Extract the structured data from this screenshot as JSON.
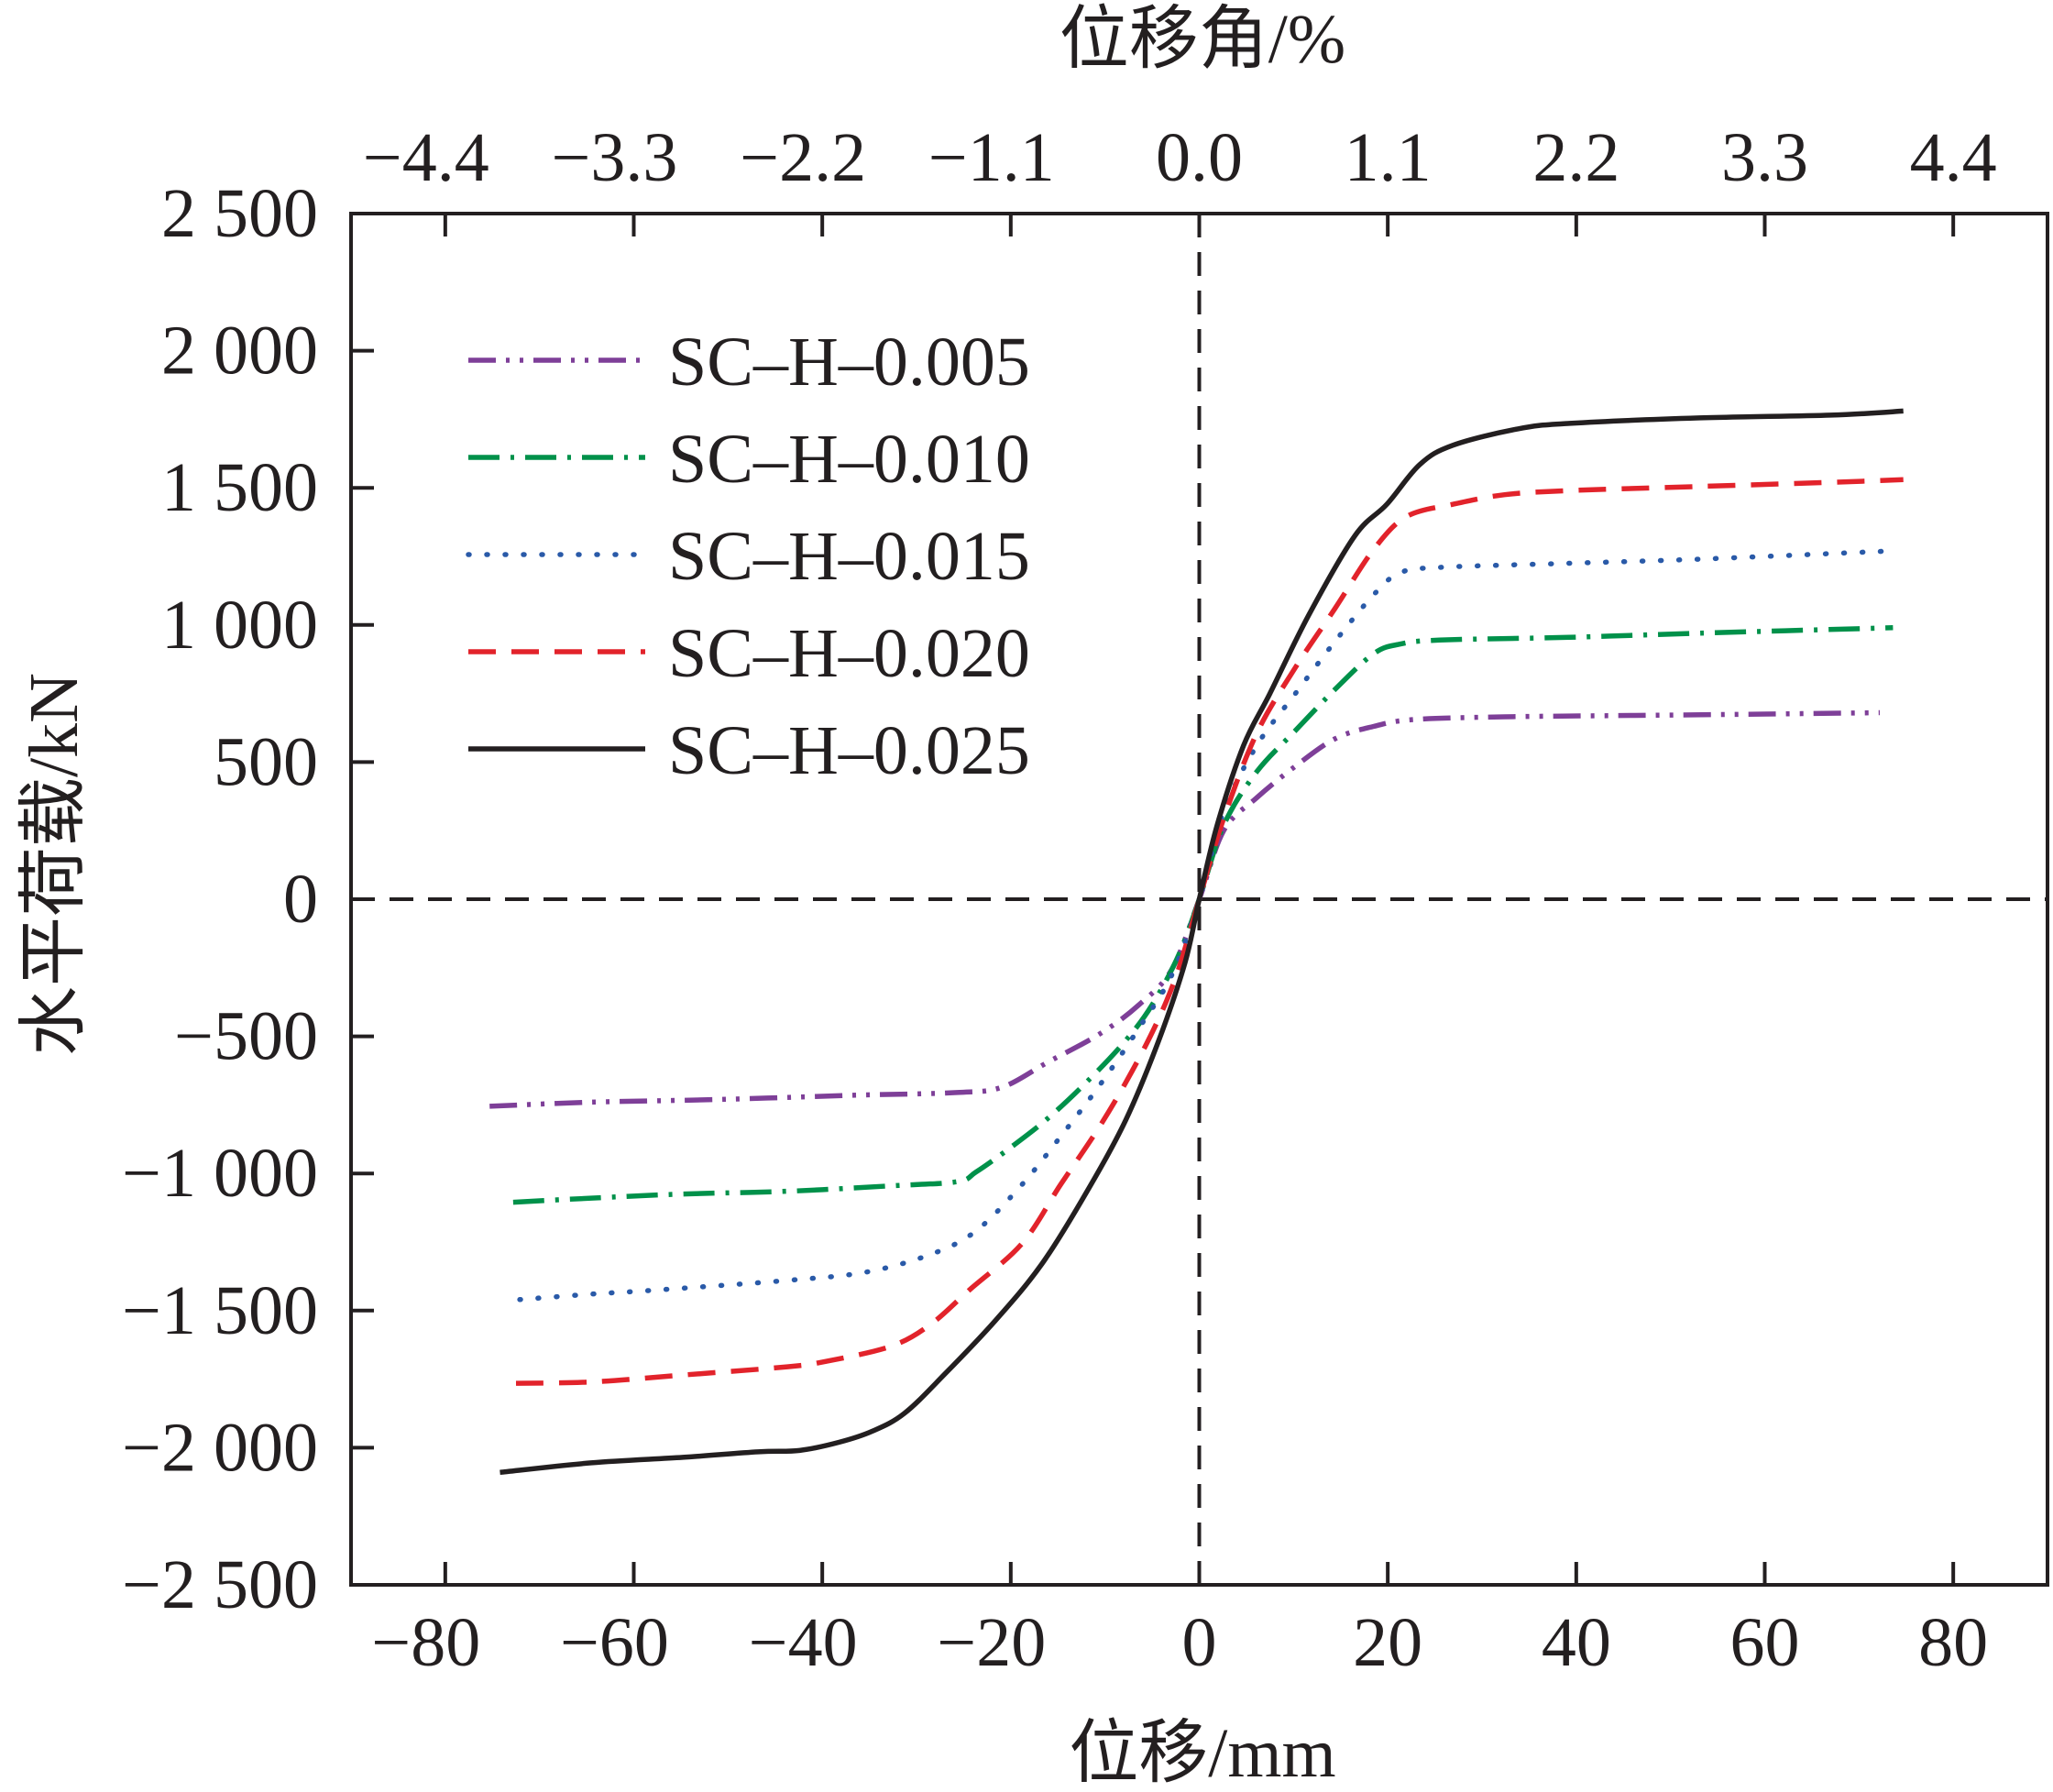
{
  "chart_data": {
    "type": "line",
    "title": "",
    "xlabel": "位移/mm",
    "ylabel": "水平荷载/kN",
    "x2label": "位移角/%",
    "xlim": [
      -90,
      90
    ],
    "x2lim": [
      -4.95,
      4.95
    ],
    "ylim": [
      -2500,
      2500
    ],
    "xticks": [
      -80,
      -60,
      -40,
      -20,
      0,
      20,
      40,
      60,
      80
    ],
    "xtick_labels": [
      "−80",
      "−60",
      "−40",
      "−20",
      "0",
      "20",
      "40",
      "60",
      "80"
    ],
    "x2ticks": [
      -4.4,
      -3.3,
      -2.2,
      -1.1,
      0.0,
      1.1,
      2.2,
      3.3,
      4.4
    ],
    "x2tick_labels": [
      "−4.4",
      "−3.3",
      "−2.2",
      "−1.1",
      "0.0",
      "1.1",
      "2.2",
      "3.3",
      "4.4"
    ],
    "yticks": [
      2500,
      2000,
      1500,
      1000,
      500,
      0,
      -500,
      -1000,
      -1500,
      -2000,
      -2500
    ],
    "ytick_labels": [
      "2 500",
      "2 000",
      "1 500",
      "1 000",
      "500",
      "0",
      "−500",
      "−1 000",
      "−1 500",
      "−2 000",
      "−2 500"
    ],
    "grid": false,
    "reference_lines": [
      "x = 0 dashed",
      "y = 0 dashed"
    ],
    "legend": "top-left",
    "series": [
      {
        "name": "SC–H–0.005",
        "color": "#7e3f98",
        "style": "dash-dot-dot",
        "points": [
          [
            -75.3,
            -755
          ],
          [
            -64.5,
            -740
          ],
          [
            -50.7,
            -730
          ],
          [
            -36.8,
            -715
          ],
          [
            -25.7,
            -705
          ],
          [
            -20.9,
            -685
          ],
          [
            -16.1,
            -595
          ],
          [
            -10.5,
            -490
          ],
          [
            -6.4,
            -385
          ],
          [
            -2.9,
            -255
          ],
          [
            0,
            0
          ],
          [
            2.6,
            250
          ],
          [
            6.1,
            370
          ],
          [
            10.2,
            485
          ],
          [
            14.4,
            585
          ],
          [
            18.5,
            630
          ],
          [
            22.7,
            655
          ],
          [
            32.4,
            665
          ],
          [
            46.2,
            670
          ],
          [
            60.1,
            675
          ],
          [
            72.2,
            680
          ]
        ]
      },
      {
        "name": "SC–H–0.010",
        "color": "#00914a",
        "style": "dash-dot",
        "points": [
          [
            -72.8,
            -1105
          ],
          [
            -64.5,
            -1090
          ],
          [
            -54.8,
            -1075
          ],
          [
            -43.7,
            -1065
          ],
          [
            -32.7,
            -1045
          ],
          [
            -25.7,
            -1030
          ],
          [
            -23.7,
            -995
          ],
          [
            -20.2,
            -910
          ],
          [
            -16.1,
            -800
          ],
          [
            -11.9,
            -665
          ],
          [
            -7.8,
            -515
          ],
          [
            -5.0,
            -385
          ],
          [
            -2.2,
            -205
          ],
          [
            0,
            0
          ],
          [
            2.6,
            270
          ],
          [
            6.1,
            465
          ],
          [
            10.2,
            615
          ],
          [
            14.4,
            765
          ],
          [
            18.5,
            895
          ],
          [
            21.3,
            930
          ],
          [
            25.5,
            945
          ],
          [
            39.3,
            955
          ],
          [
            53.1,
            970
          ],
          [
            73.6,
            990
          ]
        ]
      },
      {
        "name": "SC–H–0.015",
        "color": "#2a5aa8",
        "style": "dotted",
        "points": [
          [
            -72.1,
            -1460
          ],
          [
            -64.5,
            -1440
          ],
          [
            -57.6,
            -1425
          ],
          [
            -43.7,
            -1390
          ],
          [
            -35.4,
            -1360
          ],
          [
            -28.5,
            -1295
          ],
          [
            -23.7,
            -1210
          ],
          [
            -18.8,
            -1040
          ],
          [
            -14.7,
            -865
          ],
          [
            -10.5,
            -675
          ],
          [
            -6.4,
            -470
          ],
          [
            -2.9,
            -275
          ],
          [
            0,
            0
          ],
          [
            2.6,
            320
          ],
          [
            6.1,
            560
          ],
          [
            10.2,
            750
          ],
          [
            14.4,
            940
          ],
          [
            18.5,
            1110
          ],
          [
            21.3,
            1190
          ],
          [
            25.5,
            1210
          ],
          [
            39.3,
            1225
          ],
          [
            53.1,
            1240
          ],
          [
            73.6,
            1270
          ]
        ]
      },
      {
        "name": "SC–H–0.020",
        "color": "#e2232b",
        "style": "dashed",
        "points": [
          [
            -72.5,
            -1765
          ],
          [
            -64.5,
            -1760
          ],
          [
            -54.8,
            -1735
          ],
          [
            -43.7,
            -1705
          ],
          [
            -39.6,
            -1685
          ],
          [
            -32.7,
            -1630
          ],
          [
            -28.5,
            -1550
          ],
          [
            -24.4,
            -1425
          ],
          [
            -18.8,
            -1255
          ],
          [
            -14.7,
            -1040
          ],
          [
            -10.5,
            -825
          ],
          [
            -7.1,
            -625
          ],
          [
            -4.3,
            -435
          ],
          [
            -2.2,
            -255
          ],
          [
            0,
            0
          ],
          [
            2.6,
            295
          ],
          [
            6.1,
            605
          ],
          [
            10.2,
            845
          ],
          [
            14.4,
            1060
          ],
          [
            18.5,
            1275
          ],
          [
            22.0,
            1395
          ],
          [
            26.9,
            1440
          ],
          [
            32.4,
            1475
          ],
          [
            39.3,
            1490
          ],
          [
            53.1,
            1505
          ],
          [
            67.0,
            1520
          ],
          [
            74.7,
            1530
          ]
        ]
      },
      {
        "name": "SC–H–0.025",
        "color": "#231f20",
        "style": "solid",
        "points": [
          [
            -74.2,
            -2090
          ],
          [
            -64.5,
            -2055
          ],
          [
            -54.8,
            -2035
          ],
          [
            -46.8,
            -2015
          ],
          [
            -42.4,
            -2010
          ],
          [
            -38.2,
            -1980
          ],
          [
            -34.7,
            -1940
          ],
          [
            -31.3,
            -1875
          ],
          [
            -27.1,
            -1735
          ],
          [
            -21.6,
            -1535
          ],
          [
            -16.7,
            -1330
          ],
          [
            -11.9,
            -1065
          ],
          [
            -7.8,
            -805
          ],
          [
            -4.3,
            -515
          ],
          [
            -1.5,
            -230
          ],
          [
            0,
            0
          ],
          [
            1.9,
            270
          ],
          [
            4.7,
            560
          ],
          [
            7.5,
            750
          ],
          [
            11.6,
            1035
          ],
          [
            16.5,
            1325
          ],
          [
            19.9,
            1440
          ],
          [
            23.4,
            1585
          ],
          [
            26.9,
            1655
          ],
          [
            33.8,
            1715
          ],
          [
            39.3,
            1735
          ],
          [
            53.1,
            1755
          ],
          [
            67.0,
            1765
          ],
          [
            74.7,
            1780
          ]
        ]
      }
    ]
  }
}
